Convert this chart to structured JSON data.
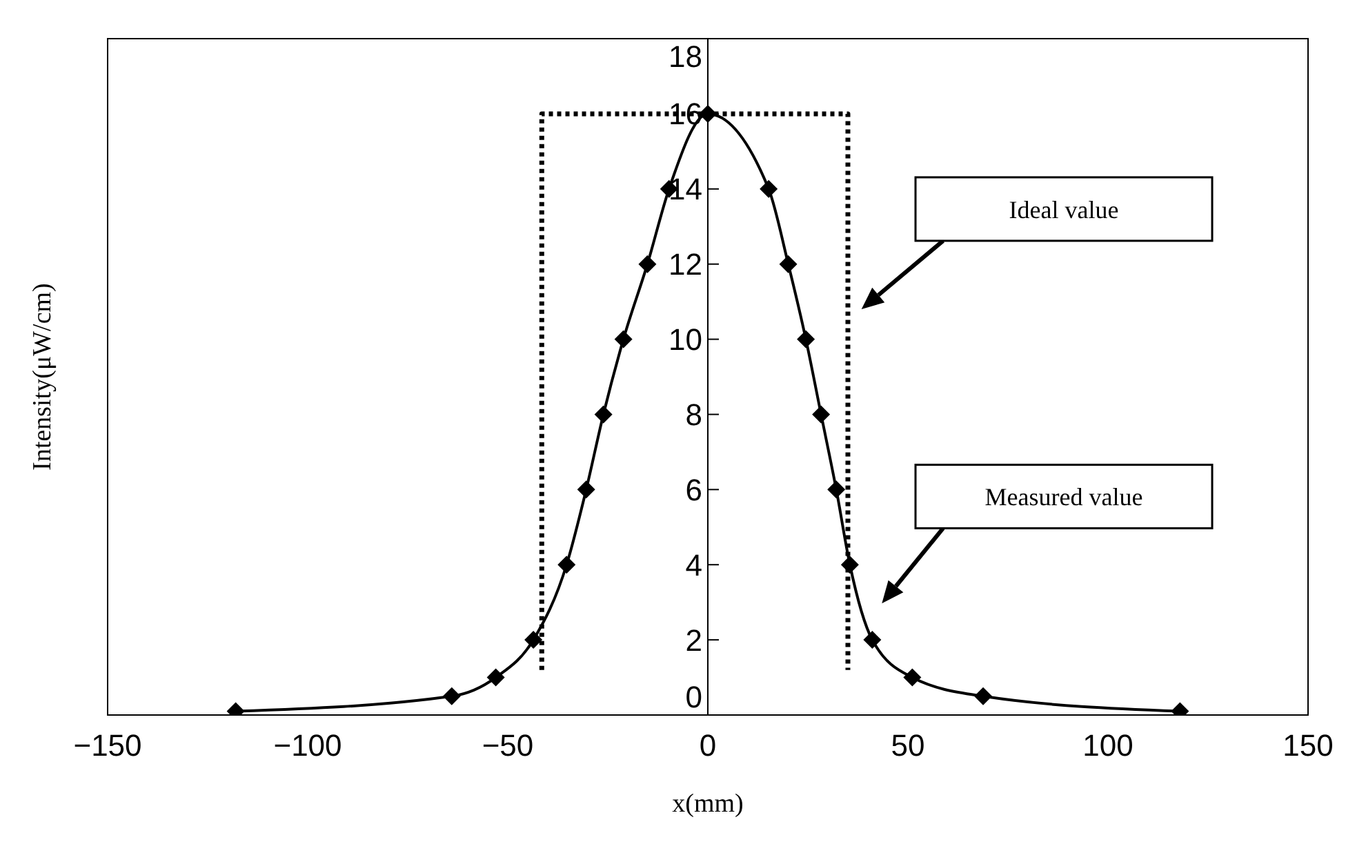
{
  "chart_data": {
    "type": "line",
    "xlabel": "x(mm)",
    "ylabel": "Intensity(μW/cm)",
    "xlim": [
      -150,
      150
    ],
    "xticks": [
      -150,
      -100,
      -50,
      0,
      50,
      100,
      150
    ],
    "ylim": [
      0,
      18
    ],
    "yticks": [
      0,
      2,
      4,
      6,
      8,
      10,
      12,
      14,
      16,
      18
    ],
    "series": [
      {
        "color": "#000000",
        "marker": "none",
        "line_style": "dotted",
        "x": [
          -41.5,
          -41.5,
          35,
          35
        ],
        "values": [
          1.2,
          16,
          16,
          1.2
        ]
      },
      {
        "color": "#000000",
        "marker": "diamond",
        "line_style": "solid",
        "x": [
          -118,
          -64,
          -53,
          -43.6,
          -35.3,
          -30.4,
          -26.1,
          -21.1,
          -15.1,
          -9.7,
          0,
          15.2,
          20.1,
          24.5,
          28.3,
          32.1,
          35.5,
          41.1,
          51.1,
          68.8,
          118
        ],
        "values": [
          0.1,
          0.5,
          1,
          2,
          4,
          6,
          8,
          10,
          12,
          14,
          16,
          14,
          12,
          10,
          8,
          6,
          4,
          2,
          1,
          0.5,
          0.1
        ]
      }
    ],
    "annotations": [
      "Ideal value",
      "Measured value"
    ]
  }
}
